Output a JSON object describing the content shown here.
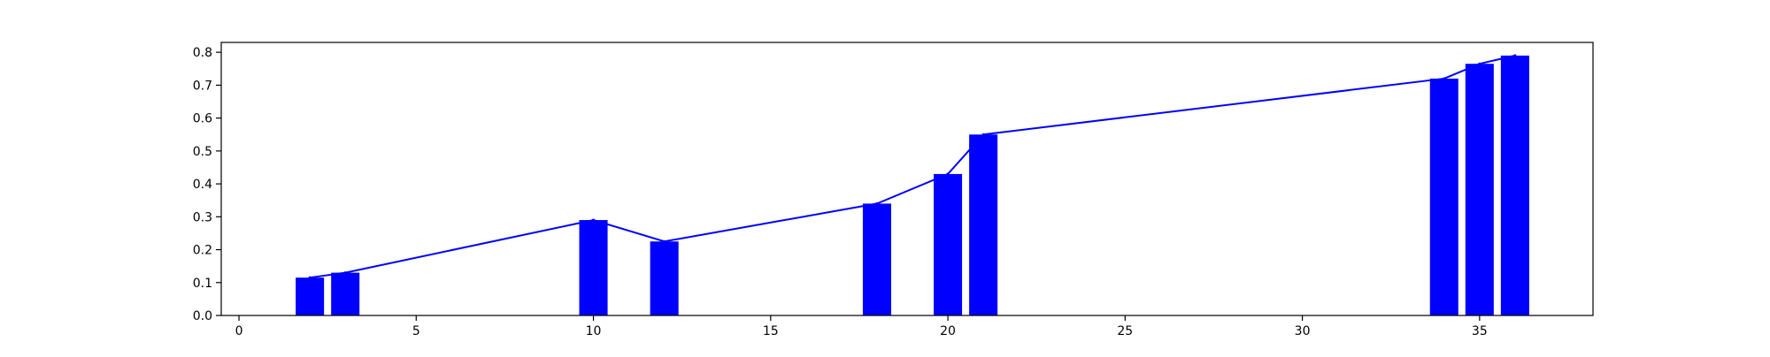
{
  "chart_data": {
    "type": "bar",
    "title": "",
    "xlabel": "",
    "ylabel": "",
    "xlim": [
      -0.5,
      38.2
    ],
    "ylim": [
      0.0,
      0.83
    ],
    "xticks": [
      0,
      5,
      10,
      15,
      20,
      25,
      30,
      35
    ],
    "yticks": [
      0.0,
      0.1,
      0.2,
      0.3,
      0.4,
      0.5,
      0.6,
      0.7,
      0.8
    ],
    "xtick_labels": [
      "0",
      "5",
      "10",
      "15",
      "20",
      "25",
      "30",
      "35"
    ],
    "ytick_labels": [
      "0.0",
      "0.1",
      "0.2",
      "0.3",
      "0.4",
      "0.5",
      "0.6",
      "0.7",
      "0.8"
    ],
    "grid": false,
    "bar_color": "#0000ff",
    "line_color": "#0000ff",
    "series": [
      {
        "type": "bar",
        "x": [
          2,
          3,
          10,
          12,
          18,
          20,
          21,
          34,
          35,
          36
        ],
        "values": [
          0.115,
          0.13,
          0.29,
          0.225,
          0.34,
          0.43,
          0.55,
          0.72,
          0.765,
          0.79
        ]
      },
      {
        "type": "line",
        "x": [
          2,
          3,
          10,
          12,
          18,
          20,
          21,
          34,
          35,
          36
        ],
        "values": [
          0.115,
          0.13,
          0.29,
          0.225,
          0.34,
          0.43,
          0.55,
          0.72,
          0.765,
          0.79
        ]
      }
    ]
  }
}
